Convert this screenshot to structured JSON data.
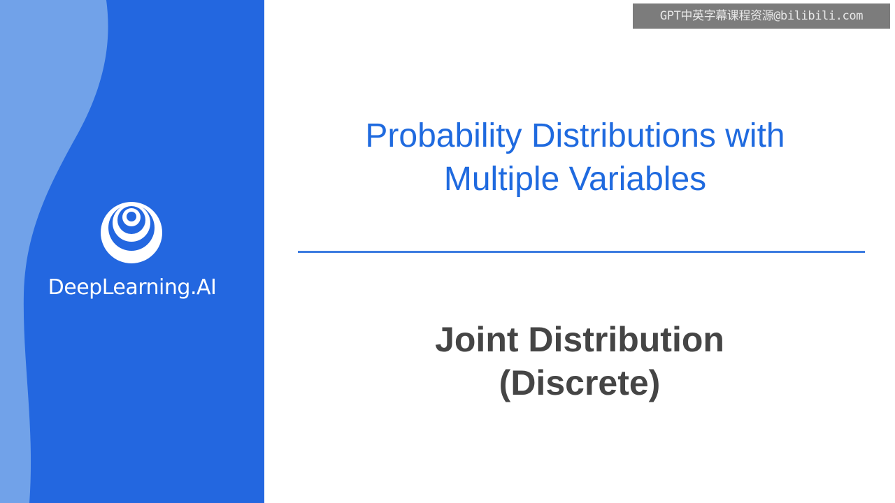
{
  "watermark": {
    "text": "GPT中英字幕课程资源@bilibili.com"
  },
  "brand": {
    "name": "DeepLearning.AI",
    "logo_icon": "concentric-circles-logo-icon"
  },
  "course": {
    "title_line1": "Probability Distributions with",
    "title_line2": "Multiple Variables"
  },
  "lesson": {
    "title_line1": "Joint Distribution",
    "title_line2": "(Discrete)"
  },
  "colors": {
    "panel_blue": "#2367e0",
    "panel_light_blue": "#7fadea",
    "title_blue": "#1f6adf",
    "divider_blue": "#3c7be0",
    "lesson_gray": "#454545"
  }
}
